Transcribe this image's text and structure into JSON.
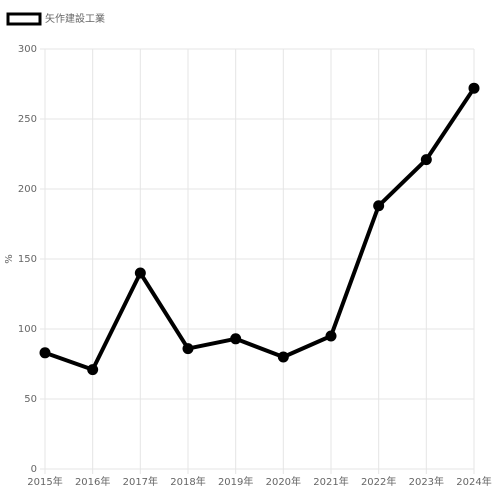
{
  "chart_data": {
    "type": "line",
    "y_label": "%",
    "categories": [
      "2015年",
      "2016年",
      "2017年",
      "2018年",
      "2019年",
      "2020年",
      "2021年",
      "2022年",
      "2023年",
      "2024年"
    ],
    "series": [
      {
        "name": "矢作建設工業",
        "color": "#000000",
        "values": [
          83,
          71,
          140,
          86,
          93,
          80,
          95,
          188,
          221,
          272
        ]
      }
    ],
    "ylim": [
      0,
      300
    ],
    "yticks": [
      0,
      50,
      100,
      150,
      200,
      250,
      300
    ],
    "grid": true
  }
}
